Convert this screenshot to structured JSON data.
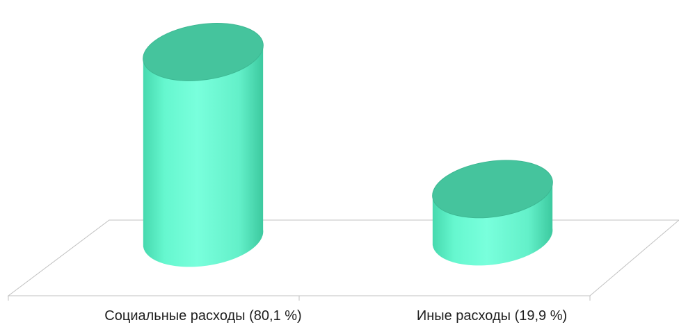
{
  "chart_data": {
    "type": "bar",
    "style": "3d-cylinder",
    "categories": [
      "Социальные расходы (80,1 %)",
      "Иные расходы (19,9 %)"
    ],
    "values": [
      80.1,
      19.9
    ],
    "unit": "%",
    "ylim": [
      0,
      100
    ],
    "grid": false,
    "legend": "none",
    "colors": {
      "cylinder_light": "#73ffd8",
      "cylinder_side": "#5ef2c8",
      "cylinder_edge": "#3fcfa3",
      "cylinder_top": "#45c49d",
      "floor_line": "#bfbfbf"
    }
  }
}
